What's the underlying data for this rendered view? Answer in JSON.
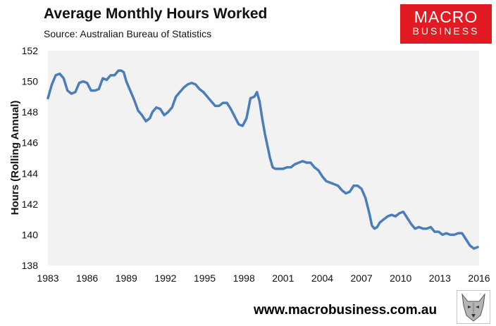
{
  "header": {
    "title": "Average Monthly Hours Worked",
    "subtitle": "Source: Australian Bureau of Statistics"
  },
  "brand": {
    "line1": "MACRO",
    "line2": "BUSINESS",
    "color": "#e21b22"
  },
  "footer": {
    "url": "www.macrobusiness.com.au"
  },
  "colors": {
    "line": "#4a7ebb",
    "plot_bg": "#f2f2f2",
    "grid": "#d9d9d9"
  },
  "chart_data": {
    "type": "line",
    "title": "Average Monthly Hours Worked",
    "subtitle": "Source: Australian Bureau of Statistics",
    "xlabel": "",
    "ylabel": "Hours (Rolling Annual)",
    "xlim": [
      1983,
      2016
    ],
    "ylim": [
      138,
      152
    ],
    "x_ticks": [
      "1983",
      "1986",
      "1989",
      "1992",
      "1995",
      "1998",
      "2001",
      "2004",
      "2007",
      "2010",
      "2013",
      "2016"
    ],
    "y_ticks": [
      "138",
      "140",
      "142",
      "144",
      "146",
      "148",
      "150",
      "152"
    ],
    "grid": false,
    "legend": "none",
    "series": [
      {
        "x": [
          1983.0,
          1983.3,
          1983.6,
          1983.9,
          1984.2,
          1984.5,
          1984.8,
          1985.1,
          1985.4,
          1985.7,
          1986.0,
          1986.3,
          1986.6,
          1986.9,
          1987.2,
          1987.5,
          1987.8,
          1988.1,
          1988.4,
          1988.6,
          1988.8,
          1989.0,
          1989.3,
          1989.6,
          1989.9,
          1990.2,
          1990.5,
          1990.8,
          1991.0,
          1991.3,
          1991.6,
          1991.9,
          1992.2,
          1992.5,
          1992.8,
          1993.1,
          1993.4,
          1993.7,
          1994.0,
          1994.3,
          1994.6,
          1994.9,
          1995.2,
          1995.5,
          1995.8,
          1996.1,
          1996.4,
          1996.7,
          1997.0,
          1997.3,
          1997.6,
          1997.9,
          1998.2,
          1998.5,
          1998.8,
          1999.0,
          1999.2,
          1999.4,
          1999.6,
          1999.8,
          2000.0,
          2000.2,
          2000.4,
          2000.7,
          2001.0,
          2001.3,
          2001.6,
          2001.9,
          2002.2,
          2002.5,
          2002.8,
          2003.1,
          2003.4,
          2003.7,
          2004.0,
          2004.3,
          2004.6,
          2004.9,
          2005.2,
          2005.5,
          2005.8,
          2006.1,
          2006.4,
          2006.7,
          2007.0,
          2007.3,
          2007.6,
          2007.8,
          2008.0,
          2008.2,
          2008.4,
          2008.7,
          2009.0,
          2009.3,
          2009.6,
          2009.9,
          2010.2,
          2010.5,
          2010.8,
          2011.1,
          2011.4,
          2011.7,
          2012.0,
          2012.3,
          2012.6,
          2012.9,
          2013.2,
          2013.5,
          2013.8,
          2014.1,
          2014.4,
          2014.7,
          2015.0,
          2015.3,
          2015.6,
          2015.9
        ],
        "values": [
          148.9,
          149.8,
          150.4,
          150.5,
          150.2,
          149.4,
          149.2,
          149.3,
          149.9,
          150.0,
          149.9,
          149.4,
          149.4,
          149.5,
          150.2,
          150.1,
          150.4,
          150.4,
          150.7,
          150.7,
          150.6,
          150.0,
          149.4,
          148.8,
          148.1,
          147.8,
          147.4,
          147.6,
          148.0,
          148.3,
          148.2,
          147.8,
          148.0,
          148.3,
          149.0,
          149.3,
          149.6,
          149.8,
          149.9,
          149.8,
          149.5,
          149.3,
          149.0,
          148.7,
          148.4,
          148.4,
          148.6,
          148.6,
          148.2,
          147.7,
          147.2,
          147.1,
          147.6,
          148.9,
          149.0,
          149.3,
          148.7,
          147.6,
          146.6,
          145.8,
          145.0,
          144.4,
          144.3,
          144.3,
          144.3,
          144.4,
          144.4,
          144.6,
          144.7,
          144.8,
          144.7,
          144.7,
          144.4,
          144.2,
          143.8,
          143.5,
          143.4,
          143.3,
          143.2,
          142.9,
          142.7,
          142.8,
          143.2,
          143.2,
          143.0,
          142.4,
          141.4,
          140.6,
          140.4,
          140.5,
          140.8,
          141.0,
          141.2,
          141.3,
          141.2,
          141.4,
          141.5,
          141.1,
          140.7,
          140.4,
          140.5,
          140.4,
          140.4,
          140.5,
          140.2,
          140.2,
          140.0,
          140.1,
          140.0,
          140.0,
          140.1,
          140.1,
          139.7,
          139.3,
          139.1,
          139.2
        ]
      }
    ]
  }
}
